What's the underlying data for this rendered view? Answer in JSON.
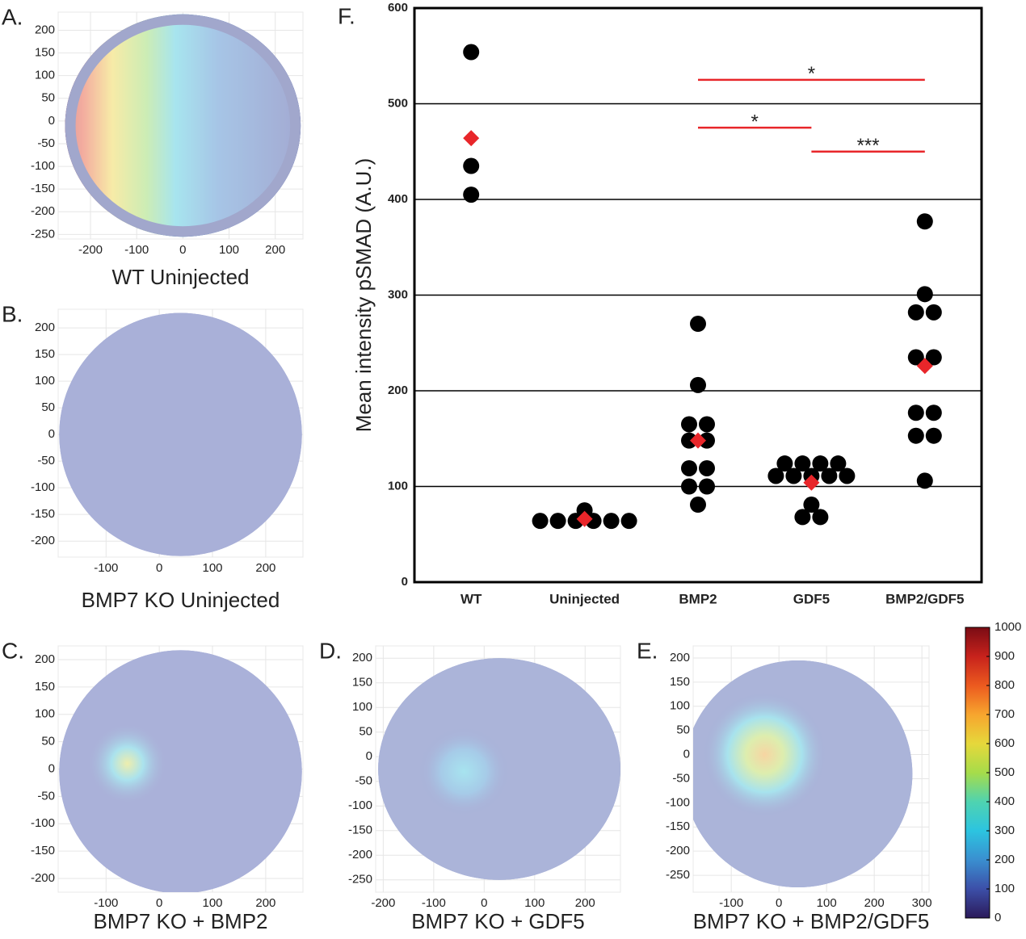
{
  "chart_data": [
    {
      "type": "density",
      "label": "A.",
      "title": "WT Uninjected",
      "xlim": [
        -270,
        260
      ],
      "ylim": [
        -260,
        240
      ],
      "xticks": [
        -200,
        -100,
        0,
        100,
        200
      ],
      "yticks": [
        200,
        150,
        100,
        50,
        0,
        -50,
        -100,
        -150,
        -200,
        -250
      ]
    },
    {
      "type": "density",
      "label": "B.",
      "title": "BMP7 KO Uninjected",
      "xlim": [
        -190,
        270
      ],
      "ylim": [
        -230,
        235
      ],
      "xticks": [
        -100,
        0,
        100,
        200
      ],
      "yticks": [
        200,
        150,
        100,
        50,
        0,
        -50,
        -100,
        -150,
        -200
      ]
    },
    {
      "type": "density",
      "label": "C.",
      "title": "BMP7 KO + BMP2",
      "xlim": [
        -190,
        270
      ],
      "ylim": [
        -225,
        225
      ],
      "xticks": [
        -100,
        0,
        100,
        200
      ],
      "yticks": [
        200,
        150,
        100,
        50,
        0,
        -50,
        -100,
        -150,
        -200
      ]
    },
    {
      "type": "density",
      "label": "D.",
      "title": "BMP7 KO + GDF5",
      "xlim": [
        -215,
        270
      ],
      "ylim": [
        -275,
        225
      ],
      "xticks": [
        -200,
        -100,
        0,
        100,
        200
      ],
      "yticks": [
        200,
        150,
        100,
        50,
        0,
        -50,
        -100,
        -150,
        -200,
        -250
      ]
    },
    {
      "type": "density",
      "label": "E.",
      "title": "BMP7 KO + BMP2/GDF5",
      "xlim": [
        -180,
        315
      ],
      "ylim": [
        -285,
        225
      ],
      "xticks": [
        -100,
        0,
        100,
        200,
        300
      ],
      "yticks": [
        200,
        150,
        100,
        50,
        0,
        -50,
        -100,
        -150,
        -200,
        -250
      ]
    },
    {
      "type": "dot",
      "label": "F.",
      "ylabel": "Mean intensity pSMAD (A.U.)",
      "categories": [
        "WT",
        "Uninjected",
        "BMP2",
        "GDF5",
        "BMP2/GDF5"
      ],
      "points": [
        [
          554,
          435,
          405
        ],
        [
          64,
          64,
          64,
          64,
          64,
          64,
          75
        ],
        [
          270,
          206,
          165,
          165,
          148,
          148,
          119,
          119,
          100,
          100,
          81
        ],
        [
          124,
          124,
          124,
          124,
          111,
          111,
          111,
          111,
          111,
          81,
          68,
          68
        ],
        [
          377,
          301,
          282,
          282,
          235,
          235,
          177,
          177,
          153,
          153,
          106
        ]
      ],
      "means": [
        464,
        66,
        148,
        104,
        226
      ],
      "color": "#000000",
      "mean_color": "#e8262a",
      "ylim": [
        0,
        600
      ],
      "yticks": [
        0,
        100,
        200,
        300,
        400,
        500,
        600
      ],
      "grid": true,
      "annotations": [
        {
          "label": "*",
          "from": 2,
          "to": 4,
          "y": 525
        },
        {
          "label": "*",
          "from": 2,
          "to": 3,
          "y": 475
        },
        {
          "label": "***",
          "from": 3,
          "to": 4,
          "y": 450
        }
      ]
    }
  ],
  "colorbar": {
    "lim": [
      0,
      1000
    ],
    "ticks": [
      0,
      100,
      200,
      300,
      400,
      500,
      600,
      700,
      800,
      900,
      1000
    ]
  }
}
